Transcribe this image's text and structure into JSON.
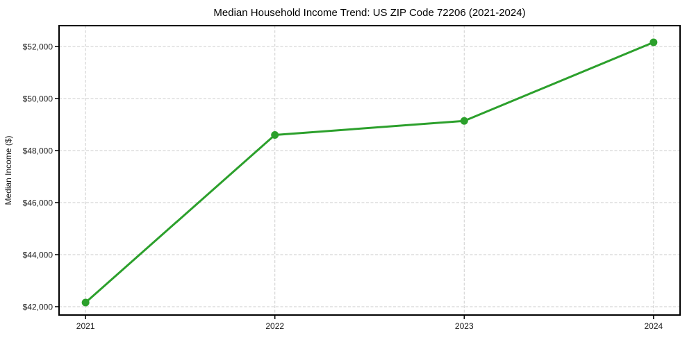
{
  "chart_data": {
    "type": "line",
    "title": "Median Household Income Trend: US ZIP Code 72206 (2021-2024)",
    "xlabel": "",
    "ylabel": "Median Income ($)",
    "x": [
      2021,
      2022,
      2023,
      2024
    ],
    "y": [
      42160,
      48600,
      49140,
      52160
    ],
    "x_ticks": [
      {
        "value": 2021,
        "label": "2021"
      },
      {
        "value": 2022,
        "label": "2022"
      },
      {
        "value": 2023,
        "label": "2023"
      },
      {
        "value": 2024,
        "label": "2024"
      }
    ],
    "y_ticks": [
      {
        "value": 42000,
        "label": "$42,000"
      },
      {
        "value": 44000,
        "label": "$44,000"
      },
      {
        "value": 46000,
        "label": "$46,000"
      },
      {
        "value": 48000,
        "label": "$48,000"
      },
      {
        "value": 50000,
        "label": "$50,000"
      },
      {
        "value": 52000,
        "label": "$52,000"
      }
    ],
    "xlim": [
      2020.86,
      2024.14
    ],
    "ylim": [
      41680,
      52800
    ],
    "grid": true,
    "legend": false,
    "line_color": "#2ca02c",
    "marker_color": "#2ca02c",
    "grid_color": "#cdcdcd",
    "axis_color": "#000000",
    "text_color": "#1a1a1a",
    "background_color": "#ffffff"
  }
}
